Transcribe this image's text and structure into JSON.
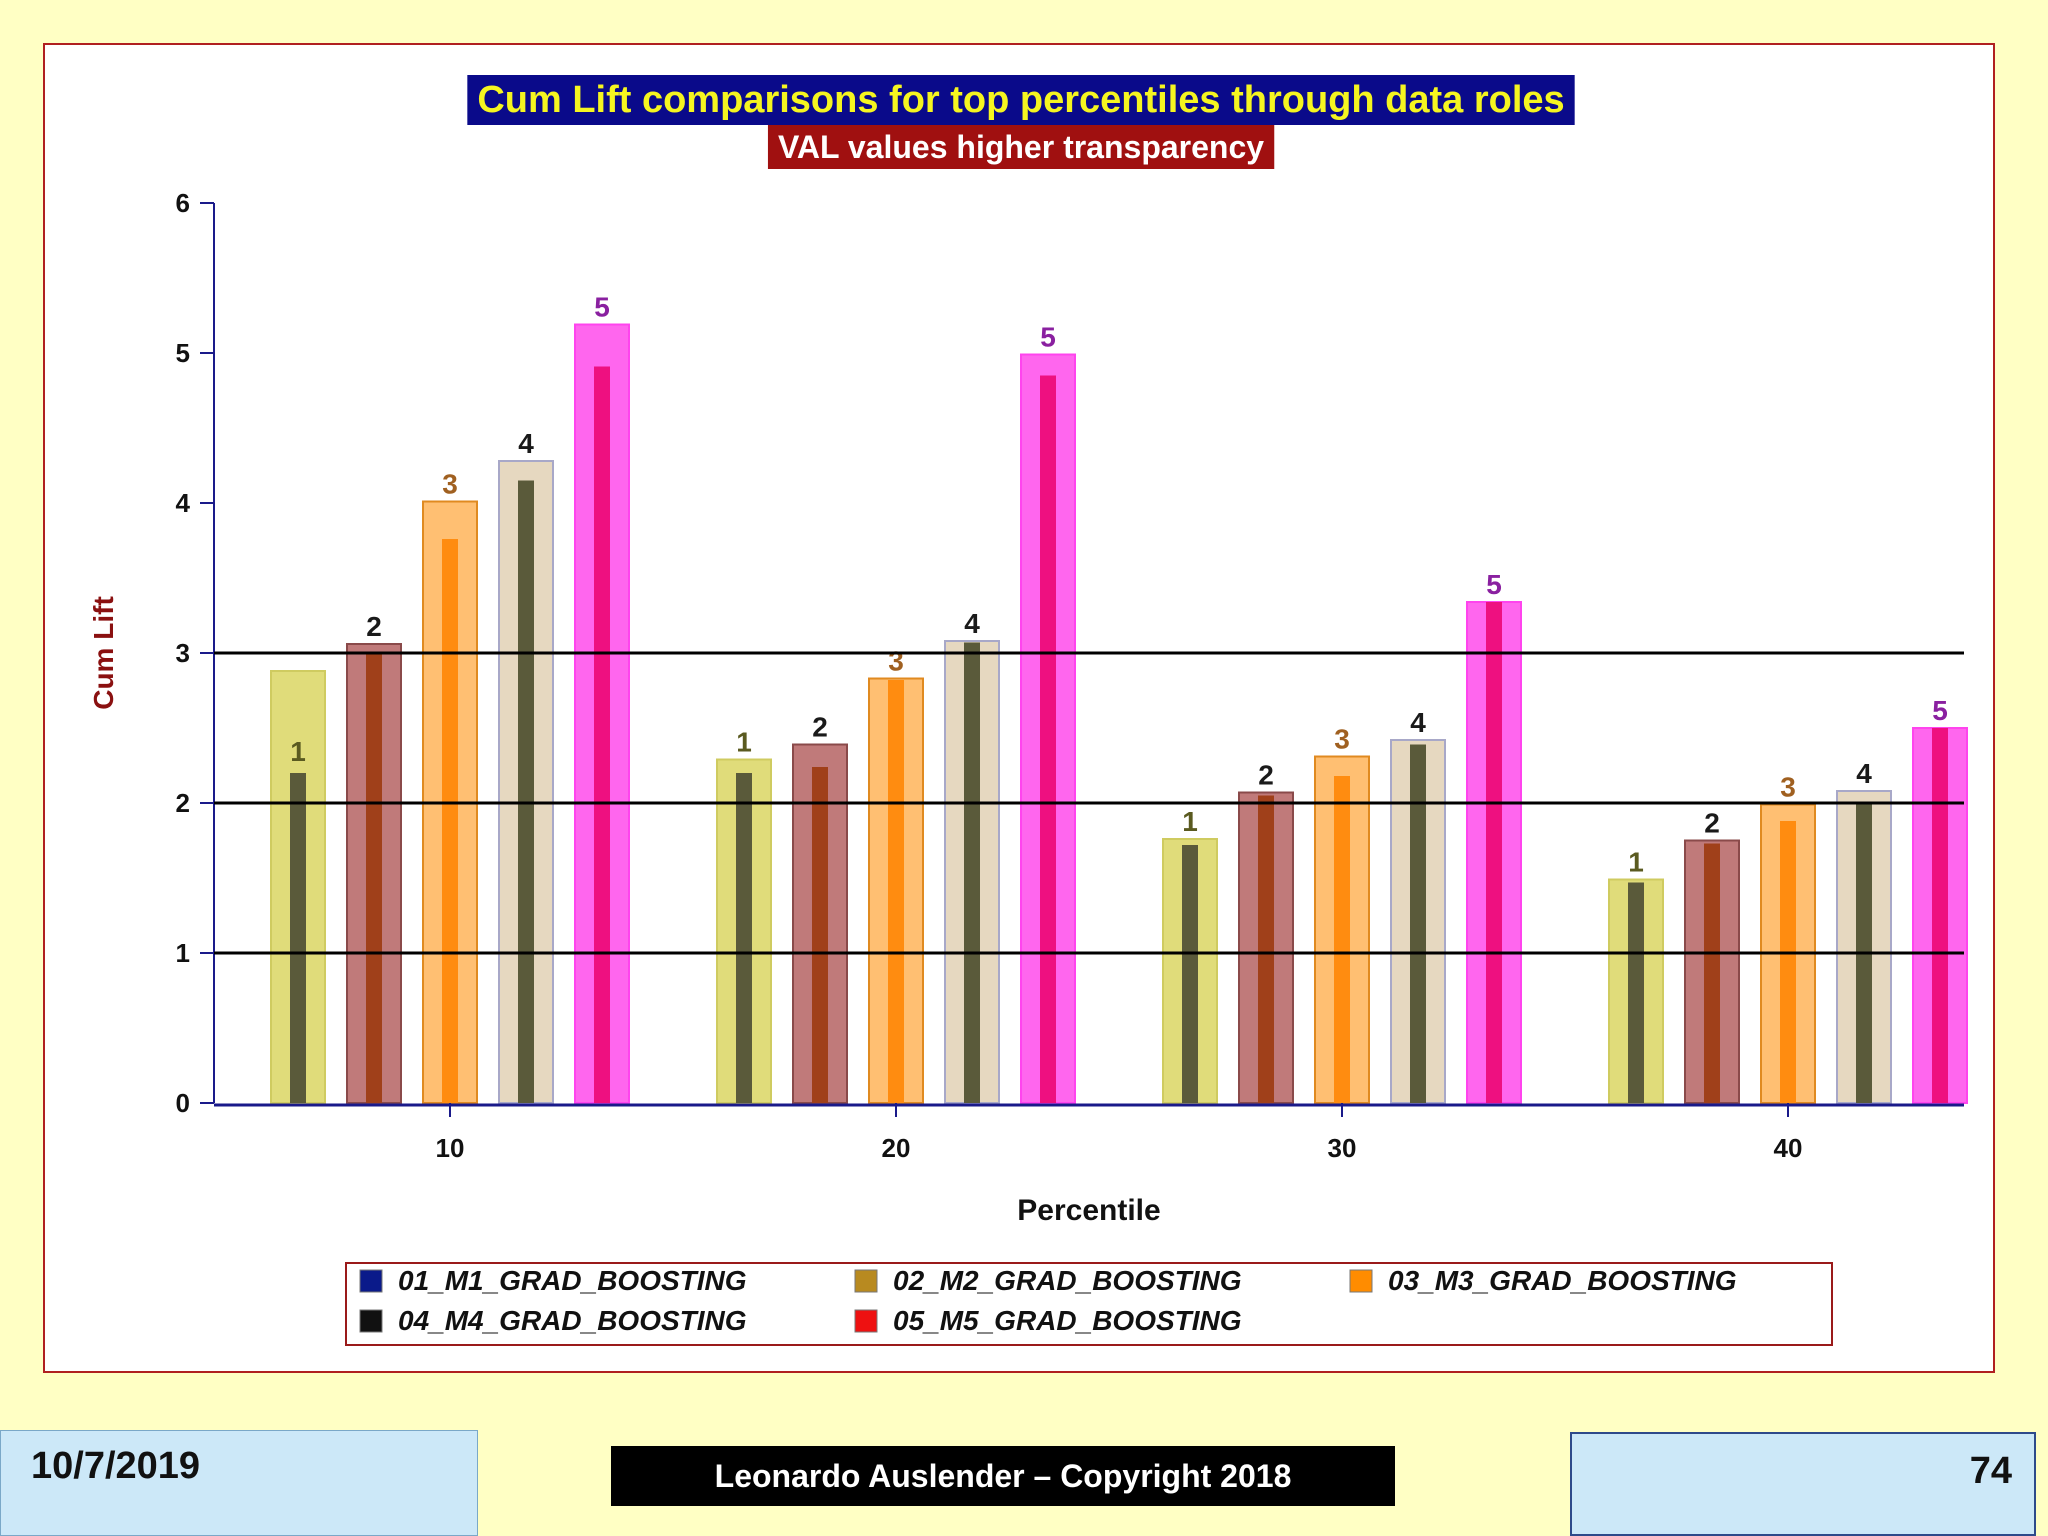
{
  "chart_data": {
    "type": "bar",
    "title": "Cum Lift comparisons for top percentiles through data roles",
    "subtitle": "VAL values higher transparency",
    "xlabel": "Percentile",
    "ylabel": "Cum Lift",
    "categories": [
      "10",
      "20",
      "30",
      "40"
    ],
    "ylim": [
      0,
      6
    ],
    "yticks": [
      0,
      1,
      2,
      3,
      4,
      5,
      6
    ],
    "reference_lines": [
      1,
      2,
      3
    ],
    "series": [
      {
        "name": "01_M1_GRAD_BOOSTING",
        "label": "1",
        "values": [
          2.88,
          2.29,
          1.76,
          1.49
        ],
        "inner_values": [
          2.2,
          2.2,
          1.72,
          1.47
        ]
      },
      {
        "name": "02_M2_GRAD_BOOSTING",
        "label": "2",
        "values": [
          3.06,
          2.39,
          2.07,
          1.75
        ],
        "inner_values": [
          3.0,
          2.24,
          2.05,
          1.73
        ]
      },
      {
        "name": "03_M3_GRAD_BOOSTING",
        "label": "3",
        "values": [
          4.01,
          2.83,
          2.31,
          1.99
        ],
        "inner_values": [
          3.76,
          2.82,
          2.18,
          1.88
        ]
      },
      {
        "name": "04_M4_GRAD_BOOSTING",
        "label": "4",
        "values": [
          4.28,
          3.08,
          2.42,
          2.08
        ],
        "inner_values": [
          4.15,
          3.07,
          2.39,
          2.0
        ]
      },
      {
        "name": "05_M5_GRAD_BOOSTING",
        "label": "5",
        "values": [
          5.19,
          4.99,
          3.34,
          2.5
        ],
        "inner_values": [
          4.91,
          4.85,
          3.34,
          2.5
        ]
      }
    ],
    "legend_placement": "bottom",
    "grid": false
  },
  "colors": {
    "outer_fill": [
      "#e0dc7a",
      "#c07a7a",
      "#ffbf72",
      "#e6d8c0",
      "#ff66ee"
    ],
    "outer_stroke": [
      "#cfcb60",
      "#8a4a4a",
      "#e08a20",
      "#a8a8c8",
      "#ff44ee"
    ],
    "inner_fill": [
      "#5a5a3a",
      "#a0401a",
      "#ff8c10",
      "#5a5a3a",
      "#ee1080"
    ],
    "legend_swatch": [
      "#0a1a8a",
      "#b88a20",
      "#ff8c00",
      "#111111",
      "#ee1111"
    ],
    "label_color": [
      "#5a5a20",
      "#1a1a1a",
      "#a06020",
      "#1a1a1a",
      "#8a20a0"
    ]
  },
  "footer": {
    "date": "10/7/2019",
    "copyright": "Leonardo Auslender – Copyright 2018",
    "page": "74"
  }
}
